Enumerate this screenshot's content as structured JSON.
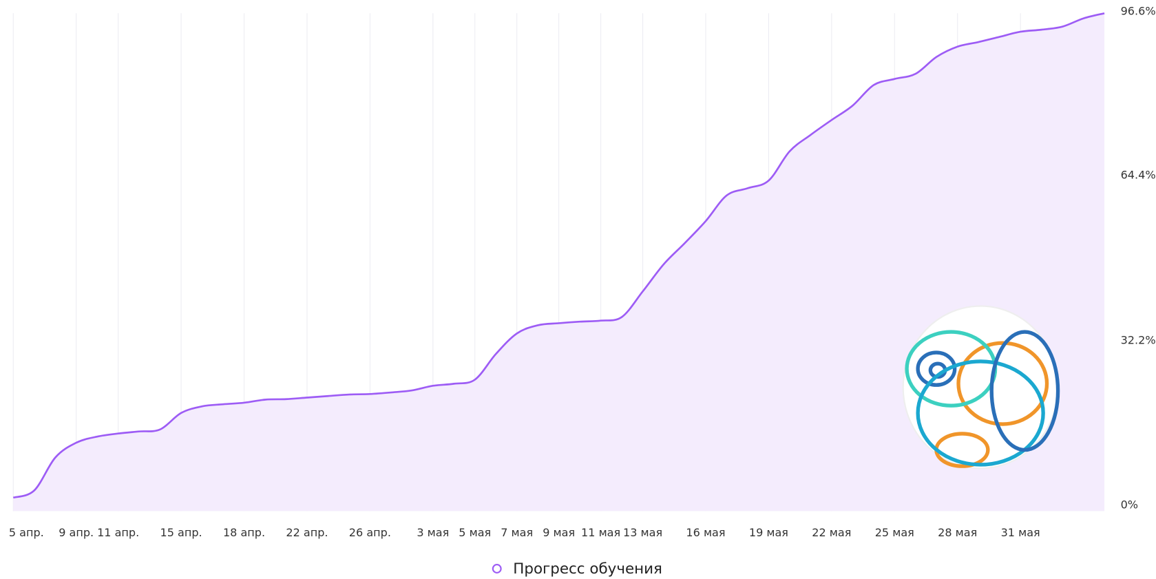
{
  "chart_data": {
    "type": "line",
    "legend": "bottom",
    "grid": true,
    "categories": [
      "5 апр.",
      null,
      null,
      "9 апр.",
      null,
      "11 апр.",
      null,
      null,
      "15 апр.",
      null,
      null,
      "18 апр.",
      null,
      null,
      "22 апр.",
      null,
      null,
      "26 апр.",
      null,
      null,
      "3 мая",
      null,
      "5 мая",
      null,
      "7 мая",
      null,
      "9 мая",
      null,
      "11 мая",
      null,
      "13 мая",
      null,
      null,
      "16 мая",
      null,
      null,
      "19 мая",
      null,
      null,
      "22 мая",
      null,
      null,
      "25 мая",
      null,
      null,
      "28 мая",
      null,
      null,
      "31 мая",
      null,
      null,
      null,
      null
    ],
    "series": [
      {
        "name": "Прогресс обучения",
        "color": "#9d5cf5",
        "values": [
          2.2,
          3.6,
          10,
          12.9,
          14.1,
          14.7,
          15.1,
          15.5,
          18.7,
          20.0,
          20.4,
          20.7,
          21.3,
          21.4,
          21.7,
          22.0,
          22.3,
          22.4,
          22.7,
          23.1,
          24.0,
          24.4,
          25.2,
          30.2,
          34.2,
          35.8,
          36.2,
          36.5,
          36.7,
          37.4,
          42.4,
          47.7,
          51.8,
          56.1,
          61.1,
          62.5,
          64.0,
          69.7,
          72.9,
          75.8,
          78.6,
          82.6,
          83.8,
          84.8,
          88.1,
          90.1,
          91.0,
          92.0,
          93.0,
          93.4,
          94.0,
          95.6,
          96.6
        ]
      }
    ],
    "ylim": [
      0,
      96.6
    ],
    "yticks": [
      {
        "value": 0,
        "label": "0%"
      },
      {
        "value": 32.2,
        "label": "32.2%"
      },
      {
        "value": 64.4,
        "label": "64.4%"
      },
      {
        "value": 96.6,
        "label": "96.6%"
      }
    ]
  }
}
